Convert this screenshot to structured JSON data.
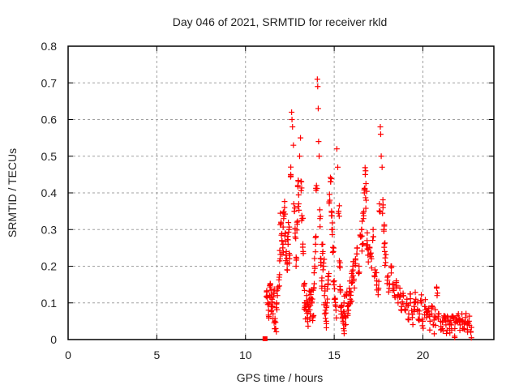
{
  "chart_data": {
    "type": "scatter",
    "title": "Day 046 of 2021, SRMTID for receiver rkld",
    "xlabel": "GPS time / hours",
    "ylabel": "SRMTID / TECUs",
    "xlim": [
      0,
      24
    ],
    "ylim": [
      0,
      0.8
    ],
    "xticks": [
      "0",
      "5",
      "10",
      "15",
      "20"
    ],
    "xtick_values": [
      0,
      5,
      10,
      15,
      20
    ],
    "yticks": [
      "0",
      "0.1",
      "0.2",
      "0.3",
      "0.4",
      "0.5",
      "0.6",
      "0.7",
      "0.8"
    ],
    "ytick_values": [
      0,
      0.1,
      0.2,
      0.3,
      0.4,
      0.5,
      0.6,
      0.7,
      0.8
    ],
    "grid": true,
    "marker": "plus",
    "color": "#ff0000",
    "special_points": [
      {
        "x": 11.1,
        "y": 0.0,
        "marker": "square"
      }
    ],
    "series": [
      {
        "name": "SRMTID",
        "points": [
          [
            11.2,
            0.13
          ],
          [
            11.25,
            0.1
          ],
          [
            11.3,
            0.08
          ],
          [
            11.35,
            0.12
          ],
          [
            11.4,
            0.15
          ],
          [
            11.45,
            0.09
          ],
          [
            11.5,
            0.11
          ],
          [
            11.55,
            0.07
          ],
          [
            11.6,
            0.13
          ],
          [
            11.65,
            0.05
          ],
          [
            11.7,
            0.03
          ],
          [
            11.75,
            0.1
          ],
          [
            11.8,
            0.12
          ],
          [
            11.9,
            0.17
          ],
          [
            11.95,
            0.22
          ],
          [
            12.0,
            0.32
          ],
          [
            12.05,
            0.27
          ],
          [
            12.1,
            0.25
          ],
          [
            12.15,
            0.33
          ],
          [
            12.2,
            0.36
          ],
          [
            12.25,
            0.29
          ],
          [
            12.3,
            0.24
          ],
          [
            12.35,
            0.21
          ],
          [
            12.4,
            0.26
          ],
          [
            12.45,
            0.3
          ],
          [
            12.5,
            0.23
          ],
          [
            12.55,
            0.45
          ],
          [
            12.6,
            0.62
          ],
          [
            12.62,
            0.6
          ],
          [
            12.65,
            0.58
          ],
          [
            12.7,
            0.53
          ],
          [
            12.75,
            0.35
          ],
          [
            12.8,
            0.28
          ],
          [
            12.85,
            0.2
          ],
          [
            12.9,
            0.32
          ],
          [
            12.95,
            0.42
          ],
          [
            13.0,
            0.37
          ],
          [
            13.05,
            0.5
          ],
          [
            13.1,
            0.55
          ],
          [
            13.15,
            0.43
          ],
          [
            13.2,
            0.33
          ],
          [
            13.25,
            0.24
          ],
          [
            13.3,
            0.15
          ],
          [
            13.35,
            0.1
          ],
          [
            13.4,
            0.08
          ],
          [
            13.45,
            0.12
          ],
          [
            13.5,
            0.06
          ],
          [
            13.55,
            0.09
          ],
          [
            13.6,
            0.11
          ],
          [
            13.65,
            0.07
          ],
          [
            13.7,
            0.13
          ],
          [
            13.75,
            0.1
          ],
          [
            13.8,
            0.06
          ],
          [
            13.85,
            0.14
          ],
          [
            13.9,
            0.2
          ],
          [
            13.95,
            0.26
          ],
          [
            14.0,
            0.42
          ],
          [
            14.05,
            0.71
          ],
          [
            14.07,
            0.69
          ],
          [
            14.1,
            0.63
          ],
          [
            14.12,
            0.54
          ],
          [
            14.15,
            0.5
          ],
          [
            14.2,
            0.33
          ],
          [
            14.25,
            0.22
          ],
          [
            14.3,
            0.16
          ],
          [
            14.35,
            0.26
          ],
          [
            14.4,
            0.2
          ],
          [
            14.45,
            0.12
          ],
          [
            14.5,
            0.08
          ],
          [
            14.55,
            0.05
          ],
          [
            14.6,
            0.1
          ],
          [
            14.65,
            0.15
          ],
          [
            14.7,
            0.18
          ],
          [
            14.75,
            0.38
          ],
          [
            14.8,
            0.43
          ],
          [
            14.85,
            0.35
          ],
          [
            14.9,
            0.3
          ],
          [
            14.95,
            0.24
          ],
          [
            15.0,
            0.16
          ],
          [
            15.05,
            0.11
          ],
          [
            15.1,
            0.08
          ],
          [
            15.15,
            0.52
          ],
          [
            15.2,
            0.47
          ],
          [
            15.25,
            0.35
          ],
          [
            15.3,
            0.2
          ],
          [
            15.35,
            0.13
          ],
          [
            15.4,
            0.09
          ],
          [
            15.45,
            0.07
          ],
          [
            15.5,
            0.05
          ],
          [
            15.55,
            0.1
          ],
          [
            15.6,
            0.04
          ],
          [
            15.65,
            0.06
          ],
          [
            15.7,
            0.12
          ],
          [
            15.75,
            0.09
          ],
          [
            15.8,
            0.08
          ],
          [
            15.85,
            0.14
          ],
          [
            15.9,
            0.11
          ],
          [
            15.95,
            0.13
          ],
          [
            16.0,
            0.17
          ],
          [
            16.05,
            0.2
          ],
          [
            16.1,
            0.16
          ],
          [
            16.2,
            0.22
          ],
          [
            16.3,
            0.25
          ],
          [
            16.4,
            0.2
          ],
          [
            16.5,
            0.28
          ],
          [
            16.55,
            0.3
          ],
          [
            16.6,
            0.26
          ],
          [
            16.65,
            0.33
          ],
          [
            16.7,
            0.4
          ],
          [
            16.75,
            0.45
          ],
          [
            16.8,
            0.38
          ],
          [
            16.85,
            0.27
          ],
          [
            16.9,
            0.23
          ],
          [
            17.0,
            0.25
          ],
          [
            17.1,
            0.22
          ],
          [
            17.2,
            0.28
          ],
          [
            17.3,
            0.19
          ],
          [
            17.4,
            0.16
          ],
          [
            17.5,
            0.14
          ],
          [
            17.55,
            0.37
          ],
          [
            17.6,
            0.58
          ],
          [
            17.62,
            0.56
          ],
          [
            17.65,
            0.5
          ],
          [
            17.7,
            0.47
          ],
          [
            17.75,
            0.36
          ],
          [
            17.8,
            0.3
          ],
          [
            17.85,
            0.24
          ],
          [
            17.9,
            0.21
          ],
          [
            18.0,
            0.17
          ],
          [
            18.1,
            0.14
          ],
          [
            18.2,
            0.2
          ],
          [
            18.3,
            0.15
          ],
          [
            18.4,
            0.12
          ],
          [
            18.5,
            0.16
          ],
          [
            18.6,
            0.1
          ],
          [
            18.7,
            0.14
          ],
          [
            18.8,
            0.09
          ],
          [
            18.9,
            0.12
          ],
          [
            19.0,
            0.08
          ],
          [
            19.1,
            0.11
          ],
          [
            19.2,
            0.07
          ],
          [
            19.3,
            0.1
          ],
          [
            19.4,
            0.06
          ],
          [
            19.5,
            0.09
          ],
          [
            19.6,
            0.11
          ],
          [
            19.7,
            0.08
          ],
          [
            19.8,
            0.07
          ],
          [
            19.9,
            0.1
          ],
          [
            20.0,
            0.05
          ],
          [
            20.1,
            0.09
          ],
          [
            20.2,
            0.06
          ],
          [
            20.3,
            0.08
          ],
          [
            20.4,
            0.05
          ],
          [
            20.5,
            0.07
          ],
          [
            20.6,
            0.04
          ],
          [
            20.7,
            0.06
          ],
          [
            20.8,
            0.12
          ],
          [
            20.9,
            0.07
          ],
          [
            21.0,
            0.05
          ],
          [
            21.1,
            0.03
          ],
          [
            21.2,
            0.06
          ],
          [
            21.3,
            0.04
          ],
          [
            21.4,
            0.05
          ],
          [
            21.5,
            0.03
          ],
          [
            21.6,
            0.04
          ],
          [
            21.7,
            0.06
          ],
          [
            21.8,
            0.03
          ],
          [
            21.9,
            0.05
          ],
          [
            22.0,
            0.07
          ],
          [
            22.1,
            0.04
          ],
          [
            22.2,
            0.05
          ],
          [
            22.3,
            0.03
          ],
          [
            22.4,
            0.06
          ],
          [
            22.5,
            0.04
          ],
          [
            22.6,
            0.05
          ],
          [
            22.7,
            0.02
          ]
        ]
      }
    ]
  }
}
